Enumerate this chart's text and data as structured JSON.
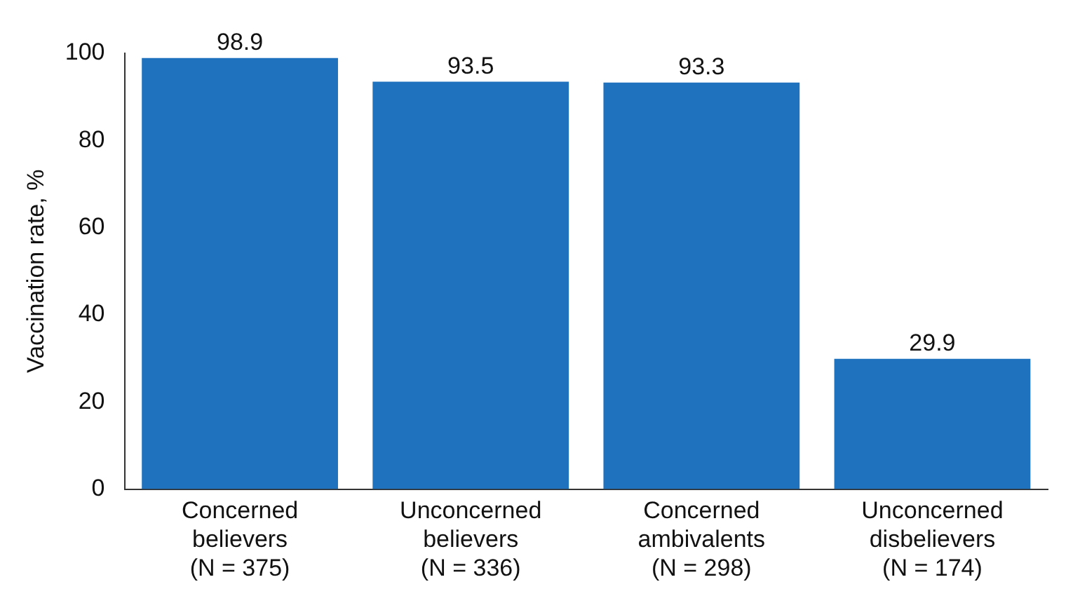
{
  "chart_data": {
    "type": "bar",
    "ylabel": "Vaccination rate, %",
    "categories": [
      "Concerned\nbelievers\n(N = 375)",
      "Unconcerned\nbelievers\n(N = 336)",
      "Concerned\nambivalents\n(N = 298)",
      "Unconcerned\ndisbelievers\n(N = 174)"
    ],
    "values": [
      98.9,
      93.5,
      93.3,
      29.9
    ],
    "color": "#1f72be",
    "ylim": [
      0,
      100
    ],
    "yticks": [
      0,
      20,
      40,
      60,
      80,
      100
    ],
    "grid": false,
    "data_labels": true,
    "legend": false
  }
}
